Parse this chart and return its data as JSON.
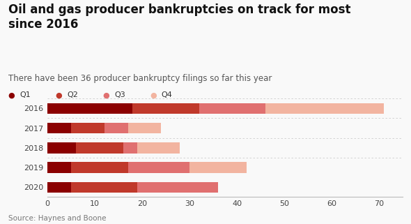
{
  "title": "Oil and gas producer bankruptcies on track for most\nsince 2016",
  "subtitle": "There have been 36 producer bankruptcy filings so far this year",
  "source": "Source: Haynes and Boone",
  "years": [
    "2016",
    "2017",
    "2018",
    "2019",
    "2020"
  ],
  "quarters": [
    "Q1",
    "Q2",
    "Q3",
    "Q4"
  ],
  "values": [
    [
      18,
      14,
      14,
      25
    ],
    [
      5,
      7,
      5,
      7
    ],
    [
      6,
      10,
      3,
      9
    ],
    [
      5,
      12,
      13,
      12
    ],
    [
      5,
      14,
      17,
      0
    ]
  ],
  "colors": [
    "#8b0000",
    "#c0392b",
    "#e07070",
    "#f2b4a0"
  ],
  "xlim": [
    0,
    75
  ],
  "xticks": [
    0,
    10,
    20,
    30,
    40,
    50,
    60,
    70
  ],
  "background_color": "#f9f9f9",
  "title_fontsize": 12,
  "subtitle_fontsize": 8.5,
  "legend_fontsize": 8,
  "tick_fontsize": 8,
  "source_fontsize": 7.5,
  "bar_height": 0.55
}
